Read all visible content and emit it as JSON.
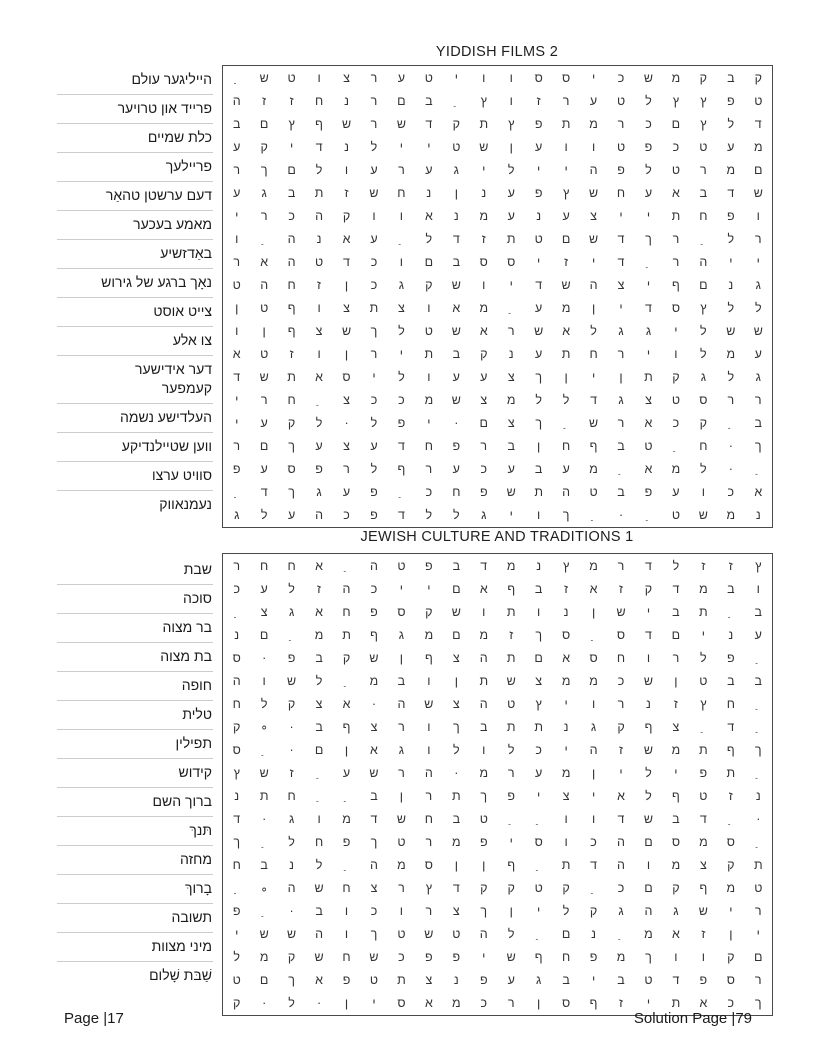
{
  "colors": {
    "grid_border": "#4a4a4a",
    "word_separator": "#cccccc",
    "text": "#1a1a1a"
  },
  "footer": {
    "left": "Page |17",
    "right": "Solution Page |79"
  },
  "puzzles": [
    {
      "title": "YIDDISH FILMS 2",
      "words": [
        "הייליגער עולם",
        "פרייד און טרויער",
        "כלת שמיים",
        "פריילעך",
        "דעם ערשטן טהאַר",
        "מאמע בעכער",
        "באַדזשיע",
        "נאָך ברגע של גירוש",
        "צייט אוסט",
        "צו אלע",
        "דער אידישער\nקעמפער",
        "העלדישע נשמה",
        "ווען שטיילנדיקע",
        "סוויט ערצו",
        "נעמנאווק"
      ],
      "grid": [
        " ַ|ש|ט|ו|צ|ר|ע|ט|י|ו|ו|ס|ס|י|כ|ש|מ|ק|ב|ק",
        "ה|ז|ז|ח|נ|ר|ם|ב| ַ|ץ|ו|ז|ר|ע|ט|ל|ץ|ץ|פ|ט",
        "ב|ם|ץ|ף|ש|ר|ש|ד|ק|ת|ץ|פ|ת|מ|ר|כ|ם|ץ|ל|ד",
        "ע|ק|י|ד|נ|ל|י|י|ט|ש|ן|ע|ו|ו|ט|פ|כ|ט|ע|מ",
        "ר|ך|ם|ל|ו|ע|ר|ע|ג|י|ל|י|י|ה|פ|ל|ט|ר|מ|ם",
        "ע|ג|ב|ת|ז|ש|ח|נ|ן|נ|ע|פ|ץ|ש|ח|ע|א|ב|ד|ש",
        "י|ר|כ|ה|ק|ו|ו|א|נ|מ|ע|נ|ע|צ|י|י|ת|ח|פ|ו",
        "ו| ַ|ה|נ|א|ע| ַ|ל|ד|ז|ת|ט|ם|ש|ד|ך|ר| ַ|ל|ר",
        "ר|א|ה|ט|ד|כ|ו|ם|ב|ס|ס|י|ז|י|ד| ַ|ר|ה|י|י",
        "ט|ה|ח|ז|ן|כ|ג|ק|ש|ו|י|ד|ש|ה|צ|י|ף|ם|נ|ג",
        "ן|ט|ף|ו|צ|ת|צ|ו|א|מ| ַ|ע|מ|ן|י|ד|ס|ץ|ל|ל",
        "ו|ן|ף|צ|ש|ך|ל|ט|ש|א|ר|ש|א|ל|ג|ג|י|ל|ש|ש",
        "א|ט|ז|ו|ן|ר|י|ת|ב|ק|נ|ע|ת|ח|ר|י|ו|ל|מ|ע",
        "ד|ש|ת|א|ס|י|ל|ו|ע|ע|צ|ך|ן|י|ן|ת|ק|ג|ל|ג",
        "י|ר|ח| ַ|צ|כ|כ|מ|ש|צ|מ|ל|ל|ד|ג|צ|ט|ס|ר|ר",
        "י|ע|ק|ל|·|ל|פ|י|·|ם|צ|ך| ַ|ש|ר|א|כ|ק| ַ|ב",
        "ר|ם|ך|ע|צ|ע|ד|ח|פ|ר|ב|ן|ח|ף|ב|ט| ַ|ח|·|ך",
        "פ|ע|ס|פ|ר|ל|ף|ר|ע|כ|ע|ב|ע|מ| ַ|א|מ|ל|·| ַ",
        " ַ|ד|ך|ג|ע|פ| ַ|כ|ח|פ|ש|ת|ה|ט|ב|פ|ע|ו|כ|א",
        "ג|ל|ע|ה|כ|פ|ד|ל|ל|ג|י|ו|ך| ַ|·| ַ|ט|ש|מ|נ"
      ]
    },
    {
      "title": "JEWISH CULTURE AND TRADITIONS 1",
      "words": [
        "שבת",
        "סוכה",
        "בר מצוה",
        "בת מצוה",
        "חופה",
        "טלית",
        "תפילין",
        "קידוש",
        "ברוך השם",
        "תּנךּ",
        "מחזה",
        "בָרוךּ",
        "תשובה",
        "מיני מצוות",
        "שַׁבּת שָׁלום"
      ],
      "grid": [
        "ר|ח|ח|א| ַ|ה|ט|פ|ב|ד|מ|נ|ץ|מ|ר|ד|ל|ז|ז|ץ",
        "כ|ע|ל|ז|ה|כ|י|י|ם|א|ף|ב|ז|א|ז|ק|ד|מ|ב|ו",
        " ַ|צ|ג|א|ח|פ|ס|ק|ש|ו|ת|ו|נ|ן|ש|י|ב|ת| ַ|ב",
        "נ|ם| ַ|מ|ת|ף|ג|מ|ם|מ|ז|ך|ס| ַ|ס|ד|ם|י|נ|ע",
        "ס|·|פ|ב|ק|ש|ן|ף|צ|ה|ת|ם|א|ס|ח|ו|ר|ל|פ| ַ",
        "ה|ו|ש|ל| ַ|מ|ב|ו|ן|ת|ש|צ|מ|מ|כ|ש|ן|ט|ב|ב",
        "ח|ל|ק|צ|א|·|ה|ש|צ|ה|ט|ץ|י|ו|ר|נ|ז|ץ|ח| ַ",
        "ק|∘|·|ב|ף|צ|ר|ו|ך|ב|ת|ת|נ|ג|ק|ף|צ| ַ|ד| ַ",
        "ס| ַ|·|ם|ן|א|ג|ו|ל|ו|ל|כ|י|ה|ז|ש|מ|ת|ף|ך",
        "ץ|ש|ז| ַ|ע|ש|ר|ה|·|מ|ר|ע|מ|ן|י|ל|י|פ|ת| ַ",
        "נ|ת|ח| ַ| ַ|ב|ן|ר|ת|ך|פ|י|צ|י|א|ל|ף|ט|ז|נ",
        "ד|·|ג|ו|מ|ד|ש|ח|ב|ט| ַ| ַ|ו|ו|ד|ש|ב|ד| ַ|·",
        "ך| ַ|ל|ח|פ|ך|ט|ר|מ|פ|י|ס|ו|כ|ה|ם|ס|מ|ס| ַ",
        "ח|ב|נ|ל| ַ|ה|מ|ס|ן|ן|ף| ַ|ת|ד|ה|ו|מ|צ|ק|ת",
        " ַ|∘|ה|ש|ח|צ|ר|ץ|ד|ק|ק|ט|ק| ַ|כ|ם|ק|ף|מ|ט",
        "פ| ַ|·|ב|ו|כ|ו|ר|צ|ך|ן|י|ל|ק|ג|ה|ג|ש|י|ר",
        "י|ש|ש|ה|ו|ך|ט|ש|ט|ה|ל| ַ|ם|נ| ַ|מ|א|ז|ן|י",
        "ל|מ|ק|ש|ח|ש|כ|פ|פ|י|ש|ף|ח|פ|מ|ך|ו|ו|ק|ם",
        "ט|ם|ך|א|פ|ט|ת|צ|נ|פ|ע|ג|ב|י|ב|ט|ד|פ|ס|ר",
        "ק|·|ל|·|ן|י|ס|א|מ|כ|ר|ן|ס|ף|ז|י|ת|א|כ|ך"
      ]
    }
  ]
}
